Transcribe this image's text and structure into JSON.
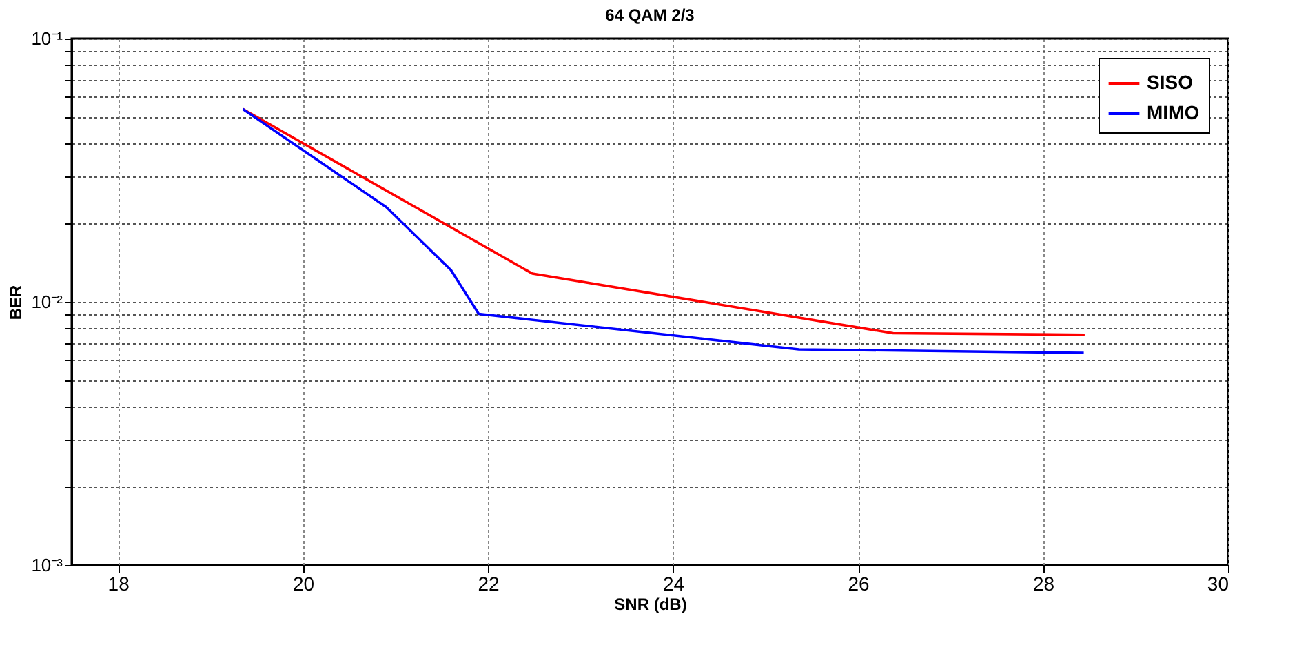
{
  "chart_data": {
    "type": "line",
    "title": "64 QAM 2/3",
    "xlabel": "SNR (dB)",
    "ylabel": "BER",
    "xlim": [
      17.5,
      30
    ],
    "xticks": [
      18,
      20,
      22,
      24,
      26,
      28,
      30
    ],
    "ylim": [
      0.001,
      0.1
    ],
    "log": true,
    "yticks": [
      {
        "value": 0.001,
        "label": "10⁻³"
      },
      {
        "value": 0.002,
        "label": null
      },
      {
        "value": 0.003,
        "label": null
      },
      {
        "value": 0.004,
        "label": null
      },
      {
        "value": 0.005,
        "label": null
      },
      {
        "value": 0.006,
        "label": null
      },
      {
        "value": 0.007,
        "label": null
      },
      {
        "value": 0.008,
        "label": null
      },
      {
        "value": 0.009,
        "label": null
      },
      {
        "value": 0.01,
        "label": "10⁻²"
      },
      {
        "value": 0.02,
        "label": null
      },
      {
        "value": 0.03,
        "label": null
      },
      {
        "value": 0.04,
        "label": null
      },
      {
        "value": 0.05,
        "label": null
      },
      {
        "value": 0.06,
        "label": null
      },
      {
        "value": 0.07,
        "label": null
      },
      {
        "value": 0.08,
        "label": null
      },
      {
        "value": 0.09,
        "label": null
      },
      {
        "value": 0.1,
        "label": "10⁻¹"
      }
    ],
    "grid": true,
    "legend": "top right",
    "marker": "none",
    "line_style": "solid",
    "series": [
      {
        "name": "SISO",
        "color": "#ff0000",
        "x": [
          19.35,
          22.48,
          26.38,
          28.45
        ],
        "values": [
          0.054,
          0.0128,
          0.0076,
          0.0075
        ]
      },
      {
        "name": "MIMO",
        "color": "#0000ff",
        "x": [
          19.35,
          20.9,
          21.6,
          21.9,
          25.36,
          28.44
        ],
        "values": [
          0.054,
          0.0229,
          0.0132,
          0.009,
          0.0066,
          0.0064
        ]
      }
    ]
  }
}
